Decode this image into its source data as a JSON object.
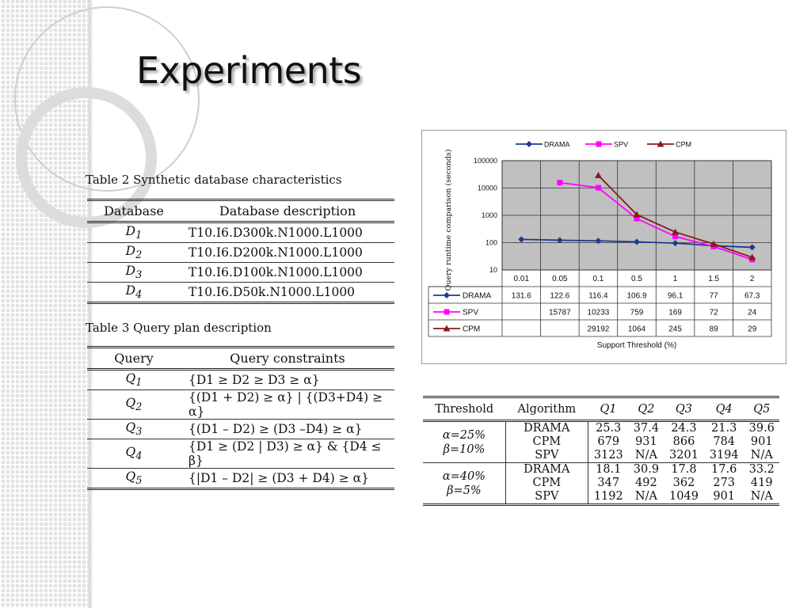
{
  "slide": {
    "title": "Experiments"
  },
  "table2": {
    "caption": "Table 2 Synthetic database characteristics",
    "headers": [
      "Database",
      "Database description"
    ],
    "rows": [
      {
        "db": "D",
        "sub": "1",
        "desc": "T10.I6.D300k.N1000.L1000"
      },
      {
        "db": "D",
        "sub": "2",
        "desc": "T10.I6.D200k.N1000.L1000"
      },
      {
        "db": "D",
        "sub": "3",
        "desc": "T10.I6.D100k.N1000.L1000"
      },
      {
        "db": "D",
        "sub": "4",
        "desc": "T10.I6.D50k.N1000.L1000"
      }
    ]
  },
  "table3": {
    "caption": "Table 3 Query plan description",
    "headers": [
      "Query",
      "Query constraints"
    ],
    "rows": [
      {
        "q": "Q",
        "sub": "1",
        "constraint": "{D1 ≥ D2 ≥ D3 ≥ α}"
      },
      {
        "q": "Q",
        "sub": "2",
        "constraint": "{(D1 + D2) ≥ α} | {(D3+D4) ≥ α}"
      },
      {
        "q": "Q",
        "sub": "3",
        "constraint": "{(D1 – D2) ≥ (D3 –D4) ≥ α}"
      },
      {
        "q": "Q",
        "sub": "4",
        "constraint": "{D1 ≥ (D2 | D3) ≥ α} & {D4 ≤ β}"
      },
      {
        "q": "Q",
        "sub": "5",
        "constraint": "{|D1 – D2| ≥ (D3 + D4) ≥ α}"
      }
    ]
  },
  "chart_data": {
    "type": "line",
    "ylabel": "Query runtime comparison (seconds)",
    "xlabel": "Support Threshold  (%)",
    "yscale": "log",
    "ylim": [
      10,
      100000
    ],
    "yticks": [
      "100000",
      "10000",
      "1000",
      "100",
      "10"
    ],
    "categories": [
      "0.01",
      "0.05",
      "0.1",
      "0.5",
      "1",
      "1.5",
      "2"
    ],
    "legend_position": "top",
    "grid": true,
    "series": [
      {
        "name": "DRAMA",
        "color": "#1f3a93",
        "marker": "diamond",
        "values": [
          131.6,
          122.6,
          116.4,
          106.9,
          96.1,
          77,
          67.3
        ],
        "labels": [
          "131.6",
          "122.6",
          "116.4",
          "106.9",
          "96.1",
          "77",
          "67.3"
        ]
      },
      {
        "name": "SPV",
        "color": "#ff00ff",
        "marker": "square",
        "values": [
          null,
          15787,
          10233,
          759,
          169,
          72,
          24
        ],
        "labels": [
          "",
          "15787",
          "10233",
          "759",
          "169",
          "72",
          "24"
        ]
      },
      {
        "name": "CPM",
        "color": "#8b1a1a",
        "marker": "triangle",
        "values": [
          null,
          null,
          29192,
          1064,
          245,
          89,
          29
        ],
        "labels": [
          "",
          "",
          "29192",
          "1064",
          "245",
          "89",
          "29"
        ]
      }
    ]
  },
  "table4": {
    "headers": [
      "Threshold",
      "Algorithm",
      "Q1",
      "Q2",
      "Q3",
      "Q4",
      "Q5"
    ],
    "groups": [
      {
        "threshold_a": "α=25%",
        "threshold_b": "β=10%",
        "rows": [
          {
            "alg": "DRAMA",
            "vals": [
              "25.3",
              "37.4",
              "24.3",
              "21.3",
              "39.6"
            ]
          },
          {
            "alg": "CPM",
            "vals": [
              "679",
              "931",
              "866",
              "784",
              "901"
            ]
          },
          {
            "alg": "SPV",
            "vals": [
              "3123",
              "N/A",
              "3201",
              "3194",
              "N/A"
            ]
          }
        ]
      },
      {
        "threshold_a": "α=40%",
        "threshold_b": "β=5%",
        "rows": [
          {
            "alg": "DRAMA",
            "vals": [
              "18.1",
              "30.9",
              "17.8",
              "17.6",
              "33.2"
            ]
          },
          {
            "alg": "CPM",
            "vals": [
              "347",
              "492",
              "362",
              "273",
              "419"
            ]
          },
          {
            "alg": "SPV",
            "vals": [
              "1192",
              "N/A",
              "1049",
              "901",
              "N/A"
            ]
          }
        ]
      }
    ]
  }
}
